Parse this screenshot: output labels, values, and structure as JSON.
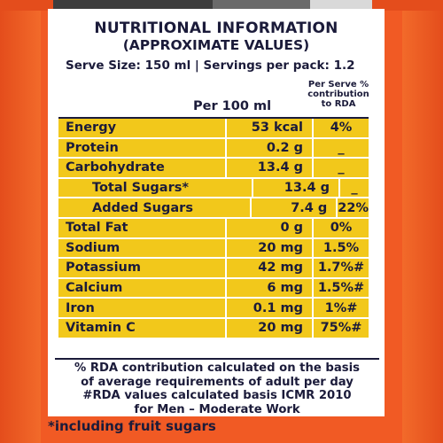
{
  "label": {
    "title": "NUTRITIONAL INFORMATION",
    "subtitle": "(APPROXIMATE VALUES)",
    "serve_info": "Serve Size: 150 ml | Servings per pack: 1.2",
    "column_per100": "Per 100 ml",
    "column_rda": "Per Serve % contribution to RDA",
    "rows": [
      {
        "name": "Energy",
        "value": "53 kcal",
        "rda": "4%"
      },
      {
        "name": "Protein",
        "value": "0.2 g",
        "rda": "_"
      },
      {
        "name": "Carbohydrate",
        "value": "13.4 g",
        "rda": "_"
      },
      {
        "name": "Total Sugars*",
        "value": "13.4 g",
        "rda": "_"
      },
      {
        "name": "Added Sugars",
        "value": "7.4 g",
        "rda": "22%"
      },
      {
        "name": "Total Fat",
        "value": "0 g",
        "rda": "0%"
      },
      {
        "name": "Sodium",
        "value": "20 mg",
        "rda": "1.5%"
      },
      {
        "name": "Potassium",
        "value": "42 mg",
        "rda": "1.7%#"
      },
      {
        "name": "Calcium",
        "value": "6 mg",
        "rda": "1.5%#"
      },
      {
        "name": "Iron",
        "value": "0.1 mg",
        "rda": "1%#"
      },
      {
        "name": "Vitamin C",
        "value": "20 mg",
        "rda": "75%#"
      }
    ],
    "note_line1": "% RDA contribution calculated on the basis",
    "note_line2": "of average requirements of adult per day",
    "note_line3": "#RDA values calculated basis ICMR 2010",
    "note_line4": "for Men – Moderate Work"
  },
  "footer_text": "*including fruit sugars",
  "colors": {
    "row_fill": "#f2c81b",
    "text": "#1b1b3a",
    "background": "#f15a24"
  }
}
